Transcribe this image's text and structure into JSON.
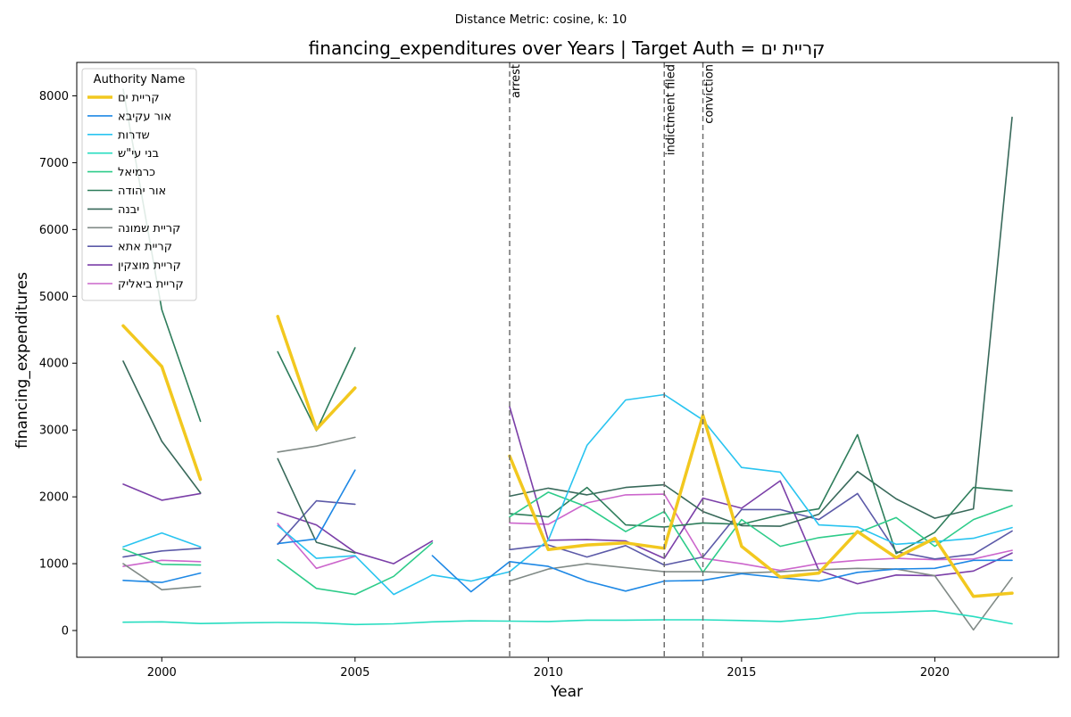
{
  "suptitle": "Distance Metric: cosine, k: 10",
  "chart_data": {
    "type": "line",
    "title": "financing_expenditures over Years | Target Auth = קריית ים",
    "xlabel": "Year",
    "ylabel": "financing_expenditures",
    "xlim": [
      1997.8,
      2023.2
    ],
    "ylim": [
      -400,
      8500
    ],
    "xticks": [
      2000,
      2005,
      2010,
      2015,
      2020
    ],
    "yticks": [
      0,
      1000,
      2000,
      3000,
      4000,
      5000,
      6000,
      7000,
      8000
    ],
    "grid": false,
    "legend_title": "Authority Name",
    "legend_placement": "top-left",
    "events": [
      {
        "x": 2009,
        "label": "arrest"
      },
      {
        "x": 2013,
        "label": "indictment filed"
      },
      {
        "x": 2014,
        "label": "conviction"
      }
    ],
    "x": [
      1999,
      2000,
      2001,
      2002,
      2003,
      2004,
      2005,
      2006,
      2007,
      2008,
      2009,
      2010,
      2011,
      2012,
      2013,
      2014,
      2015,
      2016,
      2017,
      2018,
      2019,
      2020,
      2021,
      2022
    ],
    "series": [
      {
        "name": "קריית ים",
        "color": "#f2c81f",
        "width": 3.5,
        "values": [
          4560,
          3950,
          2260,
          null,
          4700,
          3010,
          3630,
          null,
          null,
          null,
          2610,
          1210,
          1280,
          1310,
          1230,
          3220,
          1260,
          800,
          860,
          1480,
          1090,
          1380,
          510,
          560
        ]
      },
      {
        "name": "אור עקיבא",
        "color": "#1e88e5",
        "width": 1.6,
        "values": [
          750,
          720,
          860,
          null,
          1300,
          1370,
          2400,
          null,
          1120,
          580,
          1030,
          960,
          740,
          590,
          740,
          750,
          850,
          790,
          740,
          870,
          920,
          930,
          1050,
          1050
        ]
      },
      {
        "name": "שדרות",
        "color": "#29c4f0",
        "width": 1.6,
        "values": [
          1250,
          1460,
          1250,
          null,
          1570,
          1080,
          1120,
          540,
          830,
          740,
          880,
          1350,
          2770,
          3450,
          3530,
          3150,
          2440,
          2370,
          1580,
          1550,
          1290,
          1330,
          1380,
          1540
        ]
      },
      {
        "name": "בני עי\"ש",
        "color": "#27ddc0",
        "width": 1.6,
        "values": [
          125,
          130,
          105,
          115,
          120,
          115,
          90,
          100,
          130,
          145,
          140,
          135,
          155,
          155,
          160,
          160,
          150,
          135,
          180,
          260,
          275,
          295,
          210,
          100
        ]
      },
      {
        "name": "כרמיאל",
        "color": "#2ecc8a",
        "width": 1.6,
        "values": [
          1220,
          990,
          980,
          null,
          1060,
          630,
          540,
          810,
          1310,
          null,
          1700,
          2070,
          1850,
          1480,
          1780,
          870,
          1660,
          1260,
          1390,
          1460,
          1690,
          1260,
          1660,
          1870
        ]
      },
      {
        "name": "אור יהודה",
        "color": "#2e7d5b",
        "width": 1.6,
        "values": [
          8100,
          4800,
          3130,
          null,
          4170,
          2990,
          4230,
          null,
          null,
          null,
          1750,
          1700,
          2140,
          1580,
          1550,
          1610,
          1590,
          1730,
          1820,
          2930,
          1150,
          1470,
          2140,
          2090
        ]
      },
      {
        "name": "יבנה",
        "color": "#38695a",
        "width": 1.6,
        "values": [
          4030,
          2830,
          2060,
          null,
          2570,
          1320,
          1160,
          null,
          null,
          null,
          2010,
          2130,
          2030,
          2140,
          2180,
          1780,
          1570,
          1560,
          1740,
          2380,
          1970,
          1680,
          1820,
          7680
        ]
      },
      {
        "name": "קריית שמונה",
        "color": "#808a86",
        "width": 1.6,
        "values": [
          1000,
          610,
          660,
          null,
          2670,
          2760,
          2890,
          null,
          null,
          null,
          740,
          920,
          1000,
          940,
          880,
          880,
          860,
          880,
          910,
          930,
          920,
          820,
          10,
          790
        ]
      },
      {
        "name": "קריית אתא",
        "color": "#5c5aa8",
        "width": 1.6,
        "values": [
          1100,
          1190,
          1230,
          null,
          1290,
          1940,
          1890,
          null,
          null,
          null,
          1210,
          1280,
          1100,
          1270,
          980,
          1100,
          1810,
          1810,
          1660,
          2050,
          1180,
          1070,
          1140,
          1490
        ]
      },
      {
        "name": "קריית מוצקין",
        "color": "#7b3fa8",
        "width": 1.6,
        "values": [
          2190,
          1950,
          2050,
          null,
          1770,
          1580,
          1170,
          1000,
          1340,
          null,
          3350,
          1350,
          1360,
          1340,
          1080,
          1980,
          1830,
          2240,
          900,
          700,
          830,
          820,
          890,
          1160
        ]
      },
      {
        "name": "קריית ביאליק",
        "color": "#cc66cc",
        "width": 1.6,
        "values": [
          960,
          1050,
          1030,
          null,
          1600,
          930,
          1110,
          null,
          null,
          null,
          1610,
          1590,
          1910,
          2030,
          2040,
          1080,
          1000,
          900,
          1000,
          1050,
          1080,
          1060,
          1070,
          1200
        ]
      }
    ]
  }
}
